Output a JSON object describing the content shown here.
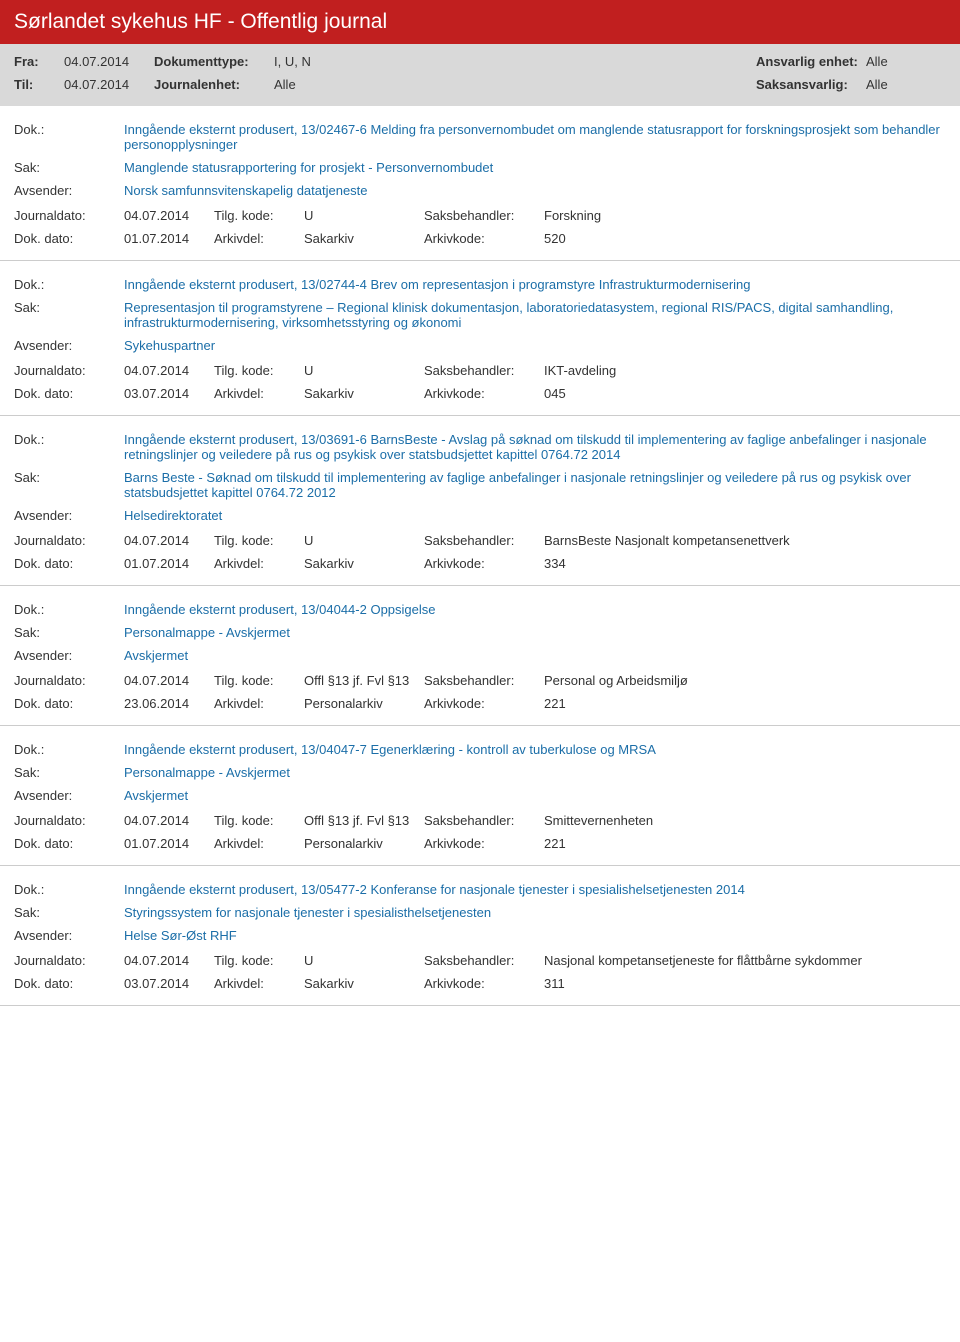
{
  "header": {
    "title": "Sørlandet sykehus HF - Offentlig journal",
    "fra_label": "Fra:",
    "fra_value": "04.07.2014",
    "til_label": "Til:",
    "til_value": "04.07.2014",
    "doktype_label": "Dokumenttype:",
    "doktype_value": "I, U, N",
    "journalenhet_label": "Journalenhet:",
    "journalenhet_value": "Alle",
    "ansvarlig_label": "Ansvarlig enhet:",
    "ansvarlig_value": "Alle",
    "saksansvarlig_label": "Saksansvarlig:",
    "saksansvarlig_value": "Alle"
  },
  "labels": {
    "dok": "Dok.:",
    "sak": "Sak:",
    "avsender": "Avsender:",
    "journaldato": "Journaldato:",
    "dokdato": "Dok. dato:",
    "tilgkode": "Tilg. kode:",
    "arkivdel": "Arkivdel:",
    "saksbehandler": "Saksbehandler:",
    "arkivkode": "Arkivkode:"
  },
  "entries": [
    {
      "dok": "Inngående eksternt produsert, 13/02467-6 Melding fra personvernombudet om manglende statusrapport for forskningsprosjekt som behandler personopplysninger",
      "sak": "Manglende statusrapportering for prosjekt - Personvernombudet",
      "avsender": "Norsk samfunnsvitenskapelig datatjeneste",
      "journaldato": "04.07.2014",
      "tilgkode": "U",
      "saksbehandler": "Forskning",
      "dokdato": "01.07.2014",
      "arkivdel": "Sakarkiv",
      "arkivkode": "520"
    },
    {
      "dok": "Inngående eksternt produsert, 13/02744-4 Brev om representasjon i programstyre Infrastrukturmodernisering",
      "sak": "Representasjon til programstyrene – Regional klinisk dokumentasjon, laboratoriedatasystem, regional RIS/PACS, digital samhandling, infrastrukturmodernisering, virksomhetsstyring og økonomi",
      "avsender": "Sykehuspartner",
      "journaldato": "04.07.2014",
      "tilgkode": "U",
      "saksbehandler": "IKT-avdeling",
      "dokdato": "03.07.2014",
      "arkivdel": "Sakarkiv",
      "arkivkode": "045"
    },
    {
      "dok": "Inngående eksternt produsert, 13/03691-6 BarnsBeste - Avslag på søknad om tilskudd til implementering av faglige anbefalinger i nasjonale retningslinjer og veiledere på rus og psykisk over statsbudsjettet kapittel 0764.72 2014",
      "sak": "Barns Beste - Søknad om tilskudd til implementering av faglige anbefalinger i nasjonale retningslinjer og veiledere på rus og psykisk over statsbudsjettet kapittel 0764.72 2012",
      "avsender": "Helsedirektoratet",
      "journaldato": "04.07.2014",
      "tilgkode": "U",
      "saksbehandler": "BarnsBeste Nasjonalt kompetansenettverk",
      "dokdato": "01.07.2014",
      "arkivdel": "Sakarkiv",
      "arkivkode": "334"
    },
    {
      "dok": "Inngående eksternt produsert, 13/04044-2 Oppsigelse",
      "sak": "Personalmappe - Avskjermet",
      "avsender": "Avskjermet",
      "journaldato": "04.07.2014",
      "tilgkode": "Offl §13 jf. Fvl §13",
      "saksbehandler": "Personal og Arbeidsmiljø",
      "dokdato": "23.06.2014",
      "arkivdel": "Personalarkiv",
      "arkivkode": "221"
    },
    {
      "dok": "Inngående eksternt produsert, 13/04047-7 Egenerklæring - kontroll av tuberkulose og MRSA",
      "sak": "Personalmappe - Avskjermet",
      "avsender": "Avskjermet",
      "journaldato": "04.07.2014",
      "tilgkode": "Offl §13 jf. Fvl §13",
      "saksbehandler": "Smittevernenheten",
      "dokdato": "01.07.2014",
      "arkivdel": "Personalarkiv",
      "arkivkode": "221"
    },
    {
      "dok": "Inngående eksternt produsert, 13/05477-2 Konferanse for nasjonale tjenester i spesialishelsetjenesten 2014",
      "sak": "Styringssystem for nasjonale tjenester i spesialisthelsetjenesten",
      "avsender": "Helse Sør-Øst RHF",
      "journaldato": "04.07.2014",
      "tilgkode": "U",
      "saksbehandler": "Nasjonal kompetansetjeneste for flåttbårne sykdommer",
      "dokdato": "03.07.2014",
      "arkivdel": "Sakarkiv",
      "arkivkode": "311"
    }
  ]
}
